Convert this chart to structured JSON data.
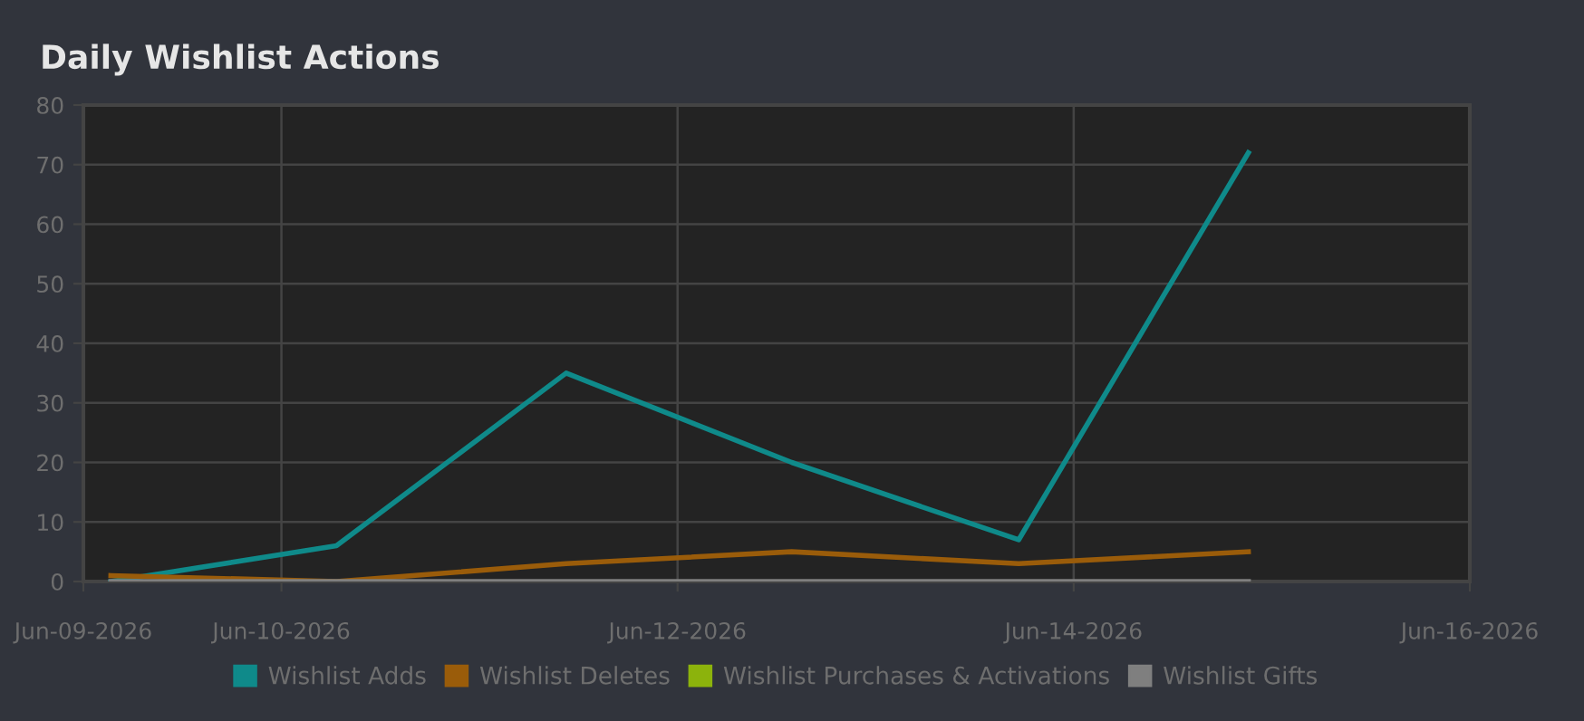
{
  "chart_data": {
    "type": "line",
    "title": "Daily Wishlist Actions",
    "x": [
      "2026-06-09T03:20",
      "2026-06-10T06:40",
      "2026-06-11T10:30",
      "2026-06-12T13:50",
      "2026-06-13T17:20",
      "2026-06-14T21:10"
    ],
    "xlim": [
      "2026-06-09",
      "2026-06-16"
    ],
    "xticks": [
      {
        "value": "2026-06-09",
        "label": "Jun-09-2026"
      },
      {
        "value": "2026-06-10",
        "label": "Jun-10-2026"
      },
      {
        "value": "2026-06-12",
        "label": "Jun-12-2026"
      },
      {
        "value": "2026-06-14",
        "label": "Jun-14-2026"
      },
      {
        "value": "2026-06-16",
        "label": "Jun-16-2026"
      }
    ],
    "ylim": [
      0,
      80
    ],
    "yticks": [
      0,
      10,
      20,
      30,
      40,
      50,
      60,
      70,
      80
    ],
    "grid": true,
    "legend": "bottom",
    "marker": "none",
    "line_style": "solid",
    "series": [
      {
        "name": "Wishlist Adds",
        "color": "#0f8a8a",
        "values": [
          0,
          6,
          35,
          20,
          7,
          72
        ]
      },
      {
        "name": "Wishlist Deletes",
        "color": "#9a5c0a",
        "values": [
          1,
          0,
          3,
          5,
          3,
          5
        ]
      },
      {
        "name": "Wishlist Purchases & Activations",
        "color": "#8cb30c",
        "values": [
          null,
          null,
          null,
          null,
          null,
          null
        ]
      },
      {
        "name": "Wishlist Gifts",
        "color": "#7f7f7f",
        "values": [
          0,
          0,
          0,
          0,
          0,
          0
        ]
      }
    ]
  }
}
